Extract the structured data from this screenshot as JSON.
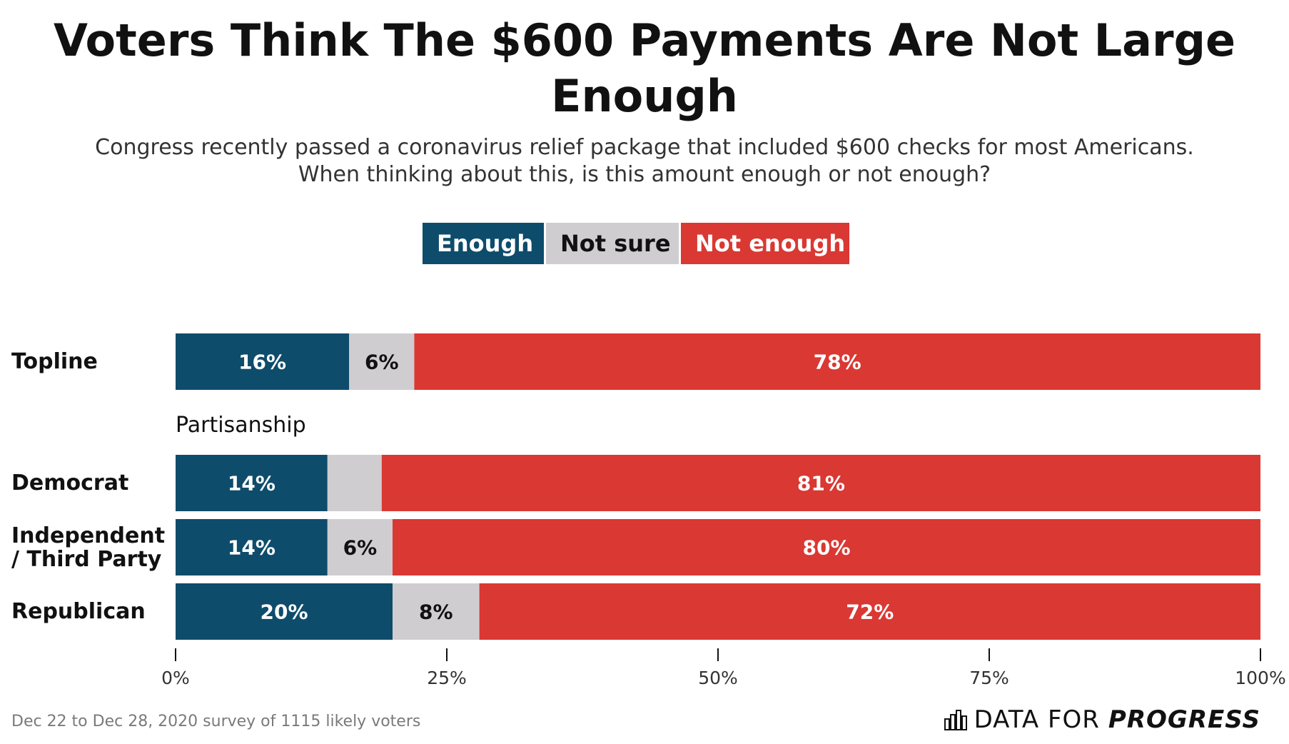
{
  "title": "Voters Think The $600 Payments Are Not Large Enough",
  "subtitle_line1": "Congress recently passed a coronavirus relief package that included $600 checks for most Americans.",
  "subtitle_line2": "When thinking about this, is this amount enough or not enough?",
  "legend": [
    "Enough",
    "Not sure",
    "Not enough"
  ],
  "colors": {
    "enough": "#0e4c6b",
    "not_sure": "#cfcdd0",
    "not_enough": "#da3833"
  },
  "group_label": "Partisanship",
  "footnote": "Dec 22 to Dec 28, 2020 survey of 1115 likely voters",
  "brand": {
    "plain": "DATA FOR",
    "bold": "PROGRESS",
    "icon": "bar-chart-logo-icon"
  },
  "chart_data": {
    "type": "bar",
    "orientation": "horizontal",
    "stacked": true,
    "categories": [
      "Topline",
      "Democrat",
      "Independent / Third Party",
      "Republican"
    ],
    "category_lines": [
      [
        "Topline"
      ],
      [
        "Democrat"
      ],
      [
        "Independent",
        "/ Third Party"
      ],
      [
        "Republican"
      ]
    ],
    "series": [
      {
        "name": "Enough",
        "values": [
          16,
          14,
          14,
          20
        ],
        "labels": [
          "16%",
          "14%",
          "14%",
          "20%"
        ]
      },
      {
        "name": "Not sure",
        "values": [
          6,
          5,
          6,
          8
        ],
        "labels": [
          "6%",
          "",
          "6%",
          "8%"
        ]
      },
      {
        "name": "Not enough",
        "values": [
          78,
          81,
          80,
          72
        ],
        "labels": [
          "78%",
          "81%",
          "80%",
          "72%"
        ]
      }
    ],
    "xlim": [
      0,
      100
    ],
    "xticks": [
      0,
      25,
      50,
      75,
      100
    ],
    "xtick_labels": [
      "0%",
      "25%",
      "50%",
      "75%",
      "100%"
    ],
    "title": "Voters Think The $600 Payments Are Not Large Enough",
    "xlabel": "",
    "ylabel": ""
  }
}
